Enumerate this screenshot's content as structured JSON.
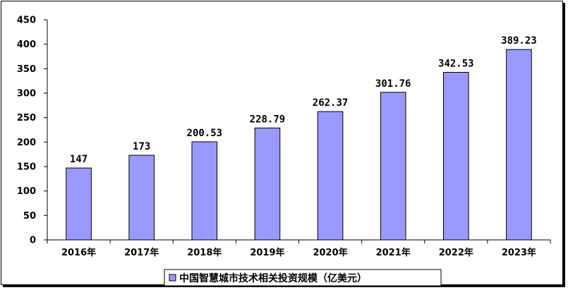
{
  "chart_data": {
    "type": "bar",
    "categories": [
      "2016年",
      "2017年",
      "2018年",
      "2019年",
      "2020年",
      "2021年",
      "2022年",
      "2023年"
    ],
    "series": [
      {
        "name": "中国智慧城市技术相关投资规模（亿美元）",
        "values": [
          147,
          173,
          200.53,
          228.79,
          262.37,
          301.76,
          342.53,
          389.23
        ],
        "labels": [
          "147",
          "173",
          "200.53",
          "228.79",
          "262.37",
          "301.76",
          "342.53",
          "389.23"
        ],
        "color": "#9999ff"
      }
    ],
    "title": "",
    "xlabel": "",
    "ylabel": "",
    "ylim": [
      0,
      450
    ],
    "yticks": [
      0,
      50,
      100,
      150,
      200,
      250,
      300,
      350,
      400,
      450
    ],
    "grid": false,
    "legend": "bottom-center"
  }
}
